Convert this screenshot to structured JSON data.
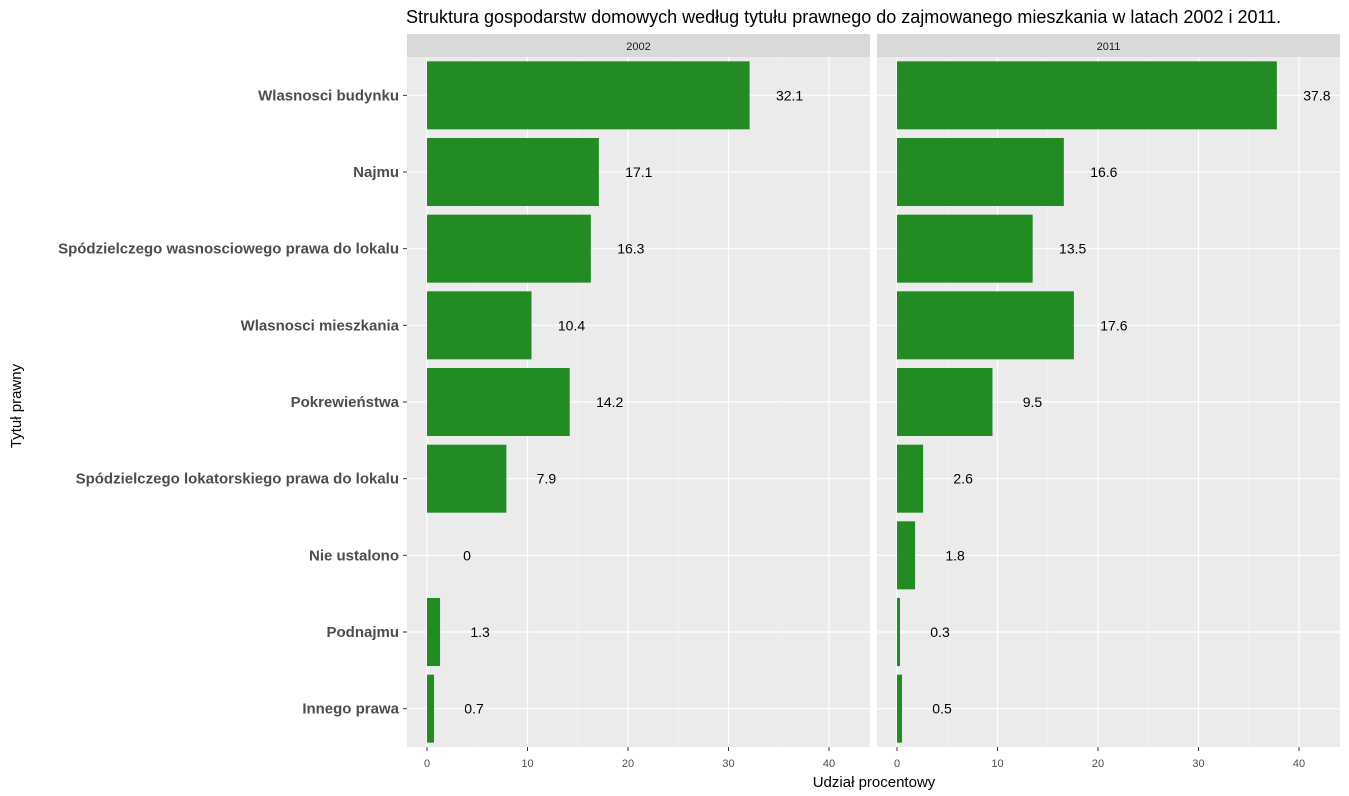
{
  "chart_data": {
    "type": "bar",
    "orientation": "horizontal",
    "title": "Struktura gospodarstw domowych według tytułu prawnego do zajmowanego mieszkania w latach 2002 i 2011.",
    "xlabel": "Udział procentowy",
    "ylabel": "Tytuł prawny",
    "xlim": [
      0,
      43
    ],
    "xticks": [
      0,
      10,
      20,
      30,
      40
    ],
    "grid": true,
    "bar_color": "#228B22",
    "panel_background": "#EBEBEB",
    "strip_background": "#D9D9D9",
    "categories": [
      "Wlasnosci budynku",
      "Najmu",
      "Spódzielczego wasnosciowego prawa do lokalu",
      "Wlasnosci mieszkania",
      "Pokrewieństwa",
      "Spódzielczego lokatorskiego prawa do lokalu",
      "Nie ustalono",
      "Podnajmu",
      "Innego prawa"
    ],
    "panels": [
      {
        "label": "2002",
        "values": [
          32.1,
          17.1,
          16.3,
          10.4,
          14.2,
          7.9,
          0,
          1.3,
          0.7
        ]
      },
      {
        "label": "2011",
        "values": [
          37.8,
          16.6,
          13.5,
          17.6,
          9.5,
          2.6,
          1.8,
          0.3,
          0.5
        ]
      }
    ]
  }
}
